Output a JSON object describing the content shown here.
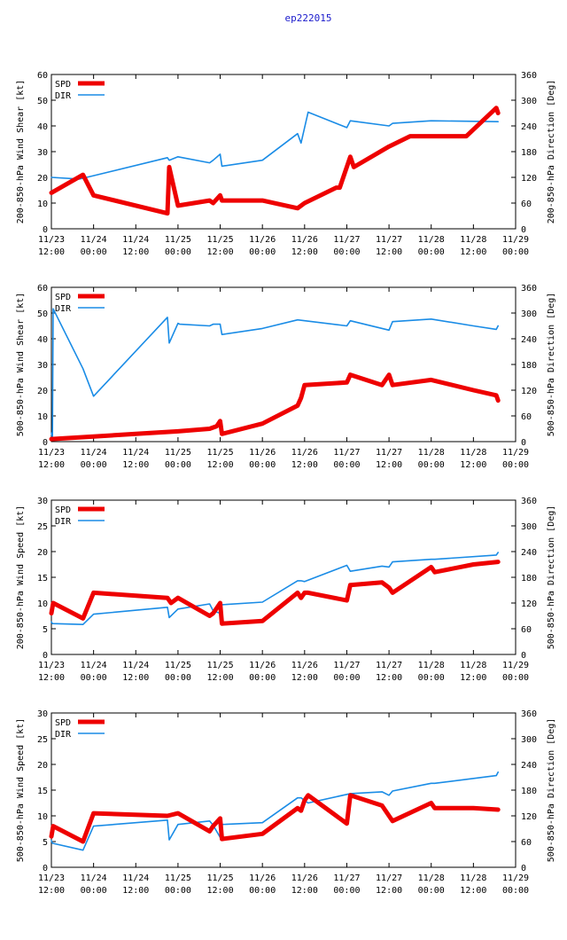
{
  "title": "ep222015",
  "colors": {
    "spd": "#ee0000",
    "dir": "#1a8ce6",
    "title": "#1a1acc"
  },
  "chart_data": [
    {
      "type": "line",
      "ylabel": "200-850-hPa Wind Shear [kt]",
      "y2label": "200-850-hPa Direction [Deg]",
      "ylim": [
        0,
        60
      ],
      "yticks": [
        0,
        10,
        20,
        30,
        40,
        50,
        60
      ],
      "y2lim": [
        0,
        360
      ],
      "y2ticks": [
        0,
        60,
        120,
        180,
        240,
        300,
        360
      ],
      "xlim": [
        0,
        132
      ],
      "xticks": [
        "11/23\n12:00",
        "11/24\n00:00",
        "11/24\n12:00",
        "11/25\n00:00",
        "11/25\n12:00",
        "11/26\n00:00",
        "11/26\n12:00",
        "11/27\n00:00",
        "11/27\n12:00",
        "11/28\n00:00",
        "11/28\n12:00",
        "11/29\n00:00"
      ],
      "legend": {
        "position": "top-left",
        "entries": [
          "SPD",
          "DIR"
        ]
      },
      "series": [
        {
          "name": "SPD",
          "axis": "left",
          "x": [
            0,
            9,
            12,
            33,
            33.5,
            36,
            45,
            46,
            48,
            48.5,
            60,
            70,
            72,
            81,
            82,
            85,
            86,
            96,
            102,
            118,
            126.5,
            127
          ],
          "y": [
            14,
            21,
            13,
            6,
            24,
            9,
            11,
            10,
            13,
            11,
            11,
            8,
            10,
            16,
            16,
            28,
            24,
            32,
            36,
            36,
            47,
            45
          ]
        },
        {
          "name": "DIR",
          "axis": "right",
          "x": [
            0,
            8,
            12,
            33,
            33.5,
            36,
            45,
            46,
            48,
            48.5,
            60,
            70,
            71,
            73,
            84,
            85,
            96,
            97,
            108,
            127
          ],
          "y": [
            120,
            116,
            124,
            166,
            160,
            168,
            154,
            160,
            174,
            146,
            160,
            222,
            200,
            272,
            236,
            252,
            240,
            246,
            252,
            250
          ]
        }
      ]
    },
    {
      "type": "line",
      "ylabel": "500-850-hPa Wind Shear [kt]",
      "y2label": "500-850-hPa Direction [Deg]",
      "ylim": [
        0,
        60
      ],
      "yticks": [
        0,
        10,
        20,
        30,
        40,
        50,
        60
      ],
      "y2lim": [
        0,
        360
      ],
      "y2ticks": [
        0,
        60,
        120,
        180,
        240,
        300,
        360
      ],
      "xlim": [
        0,
        132
      ],
      "xticks": [
        "11/23\n12:00",
        "11/24\n00:00",
        "11/24\n12:00",
        "11/25\n00:00",
        "11/25\n12:00",
        "11/26\n00:00",
        "11/26\n12:00",
        "11/27\n00:00",
        "11/27\n12:00",
        "11/28\n00:00",
        "11/28\n12:00",
        "11/29\n00:00"
      ],
      "legend": {
        "position": "top-left",
        "entries": [
          "SPD",
          "DIR"
        ]
      },
      "series": [
        {
          "name": "SPD",
          "axis": "left",
          "x": [
            0,
            12,
            24,
            36,
            45,
            47,
            48,
            48.5,
            60,
            70,
            71,
            72,
            84,
            85,
            94,
            96,
            97,
            108,
            120,
            126.5,
            127
          ],
          "y": [
            1,
            2,
            3,
            4,
            5,
            6,
            8,
            3,
            7,
            14,
            17,
            22,
            23,
            26,
            22,
            26,
            22,
            24,
            20,
            18,
            16
          ]
        },
        {
          "name": "DIR",
          "axis": "right",
          "x": [
            0,
            0.3,
            0.5,
            9,
            12,
            33,
            33.5,
            36,
            36.5,
            45,
            46,
            48,
            48.5,
            60,
            70,
            84,
            85,
            96,
            97,
            108,
            120,
            126.5,
            127
          ],
          "y": [
            20,
            10,
            310,
            170,
            106,
            290,
            230,
            276,
            274,
            270,
            274,
            274,
            250,
            264,
            284,
            270,
            282,
            260,
            280,
            286,
            270,
            262,
            270
          ]
        }
      ]
    },
    {
      "type": "line",
      "ylabel": "200-850-hPa Wind Speed [kt]",
      "y2label": "500-850-hPa Direction [Deg]",
      "ylim": [
        0,
        30
      ],
      "yticks": [
        0,
        5,
        10,
        15,
        20,
        25,
        30
      ],
      "y2lim": [
        0,
        360
      ],
      "y2ticks": [
        0,
        60,
        120,
        180,
        240,
        300,
        360
      ],
      "xlim": [
        0,
        132
      ],
      "xticks": [
        "11/23\n12:00",
        "11/24\n00:00",
        "11/24\n12:00",
        "11/25\n00:00",
        "11/25\n12:00",
        "11/26\n00:00",
        "11/26\n12:00",
        "11/27\n00:00",
        "11/27\n12:00",
        "11/28\n00:00",
        "11/28\n12:00",
        "11/29\n00:00"
      ],
      "legend": {
        "position": "top-left",
        "entries": [
          "SPD",
          "DIR"
        ]
      },
      "series": [
        {
          "name": "SPD",
          "axis": "left",
          "x": [
            0,
            0.5,
            9,
            12,
            33,
            34,
            36,
            45,
            46,
            48,
            48.5,
            60,
            70,
            71,
            72,
            73,
            84,
            85,
            94,
            96,
            97,
            108,
            109,
            120,
            127
          ],
          "y": [
            8,
            10,
            7,
            12,
            11,
            10,
            11,
            7.5,
            8,
            10,
            6,
            6.5,
            12,
            11,
            12,
            12,
            10.5,
            13.5,
            14,
            13,
            12,
            17,
            16,
            17.5,
            18
          ]
        },
        {
          "name": "DIR",
          "axis": "right",
          "x": [
            0,
            0.3,
            9,
            12,
            33,
            33.5,
            36,
            45,
            46,
            48,
            48.5,
            60,
            70,
            71,
            72,
            84,
            85,
            94,
            96,
            97,
            108,
            109,
            126.5,
            127
          ],
          "y": [
            76,
            72,
            70,
            94,
            110,
            86,
            106,
            118,
            102,
            96,
            116,
            122,
            172,
            172,
            170,
            208,
            194,
            206,
            204,
            216,
            222,
            222,
            232,
            238
          ]
        }
      ]
    },
    {
      "type": "line",
      "ylabel": "500-850-hPa Wind Speed [kt]",
      "y2label": "500-850-hPa Direction [Deg]",
      "ylim": [
        0,
        30
      ],
      "yticks": [
        0,
        5,
        10,
        15,
        20,
        25,
        30
      ],
      "y2lim": [
        0,
        360
      ],
      "y2ticks": [
        0,
        60,
        120,
        180,
        240,
        300,
        360
      ],
      "xlim": [
        0,
        132
      ],
      "xticks": [
        "11/23\n12:00",
        "11/24\n00:00",
        "11/24\n12:00",
        "11/25\n00:00",
        "11/25\n12:00",
        "11/26\n00:00",
        "11/26\n12:00",
        "11/27\n00:00",
        "11/27\n12:00",
        "11/28\n00:00",
        "11/28\n12:00",
        "11/29\n00:00"
      ],
      "legend": {
        "position": "top-left",
        "entries": [
          "SPD",
          "DIR"
        ]
      },
      "series": [
        {
          "name": "SPD",
          "axis": "left",
          "x": [
            0,
            0.5,
            9,
            12,
            33,
            36,
            45,
            46,
            48,
            48.5,
            60,
            70,
            71,
            72,
            73,
            84,
            85,
            94,
            96,
            97,
            108,
            109,
            120,
            127
          ],
          "y": [
            6,
            8,
            5,
            10.5,
            10,
            10.5,
            7,
            8,
            9.5,
            5.5,
            6.5,
            11.5,
            11,
            13,
            14,
            8.5,
            14,
            12,
            10,
            9,
            12.5,
            11.5,
            11.5,
            11.2
          ]
        },
        {
          "name": "DIR",
          "axis": "right",
          "x": [
            0,
            0.3,
            9,
            12,
            33,
            33.5,
            36,
            45,
            46,
            48,
            48.5,
            60,
            70,
            71,
            73,
            84,
            85,
            94,
            96,
            97,
            108,
            109,
            126.5,
            127
          ],
          "y": [
            62,
            56,
            40,
            96,
            110,
            64,
            100,
            108,
            98,
            70,
            100,
            104,
            162,
            162,
            150,
            170,
            172,
            176,
            168,
            178,
            196,
            196,
            214,
            222
          ]
        }
      ]
    }
  ]
}
